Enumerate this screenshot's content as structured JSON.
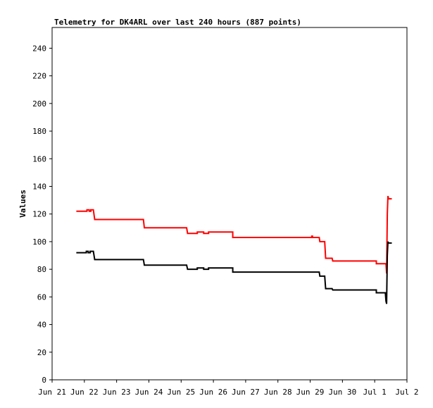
{
  "chart_data": {
    "type": "line",
    "title": "Telemetry for DK4ARL over last 240 hours (887 points)",
    "xlabel": "",
    "ylabel": "Values",
    "x_unit": "days",
    "xlim": [
      0,
      11
    ],
    "ylim": [
      0,
      255
    ],
    "x_ticks": [
      {
        "value": 0,
        "label": "Jun 21"
      },
      {
        "value": 1,
        "label": "Jun 22"
      },
      {
        "value": 2,
        "label": "Jun 23"
      },
      {
        "value": 3,
        "label": "Jun 24"
      },
      {
        "value": 4,
        "label": "Jun 25"
      },
      {
        "value": 5,
        "label": "Jun 26"
      },
      {
        "value": 6,
        "label": "Jun 27"
      },
      {
        "value": 7,
        "label": "Jun 28"
      },
      {
        "value": 8,
        "label": "Jun 29"
      },
      {
        "value": 9,
        "label": "Jun 30"
      },
      {
        "value": 10,
        "label": "Jul 1"
      },
      {
        "value": 11,
        "label": "Jul 2"
      }
    ],
    "y_ticks": [
      0,
      20,
      40,
      60,
      80,
      100,
      120,
      140,
      160,
      180,
      200,
      220,
      240
    ],
    "grid": false,
    "legend": "none",
    "series": [
      {
        "color": "#ff0000",
        "points": [
          [
            0.75,
            122
          ],
          [
            1.08,
            122
          ],
          [
            1.08,
            123
          ],
          [
            1.15,
            123
          ],
          [
            1.15,
            122
          ],
          [
            1.2,
            122
          ],
          [
            1.2,
            123
          ],
          [
            1.28,
            123
          ],
          [
            1.32,
            116
          ],
          [
            2.83,
            116
          ],
          [
            2.86,
            110
          ],
          [
            4.17,
            110
          ],
          [
            4.2,
            106
          ],
          [
            4.5,
            106
          ],
          [
            4.5,
            107
          ],
          [
            4.7,
            107
          ],
          [
            4.7,
            106
          ],
          [
            4.85,
            106
          ],
          [
            4.85,
            107
          ],
          [
            5.6,
            107
          ],
          [
            5.6,
            103
          ],
          [
            8.05,
            103
          ],
          [
            8.05,
            104
          ],
          [
            8.07,
            104
          ],
          [
            8.07,
            103
          ],
          [
            8.28,
            103
          ],
          [
            8.3,
            100
          ],
          [
            8.45,
            100
          ],
          [
            8.48,
            88
          ],
          [
            8.68,
            88
          ],
          [
            8.7,
            86
          ],
          [
            10.05,
            86
          ],
          [
            10.05,
            84
          ],
          [
            10.35,
            84
          ],
          [
            10.37,
            77
          ],
          [
            10.39,
            120
          ],
          [
            10.41,
            133
          ],
          [
            10.43,
            131
          ],
          [
            10.53,
            131
          ]
        ]
      },
      {
        "color": "#000000",
        "points": [
          [
            0.75,
            92
          ],
          [
            1.06,
            92
          ],
          [
            1.06,
            93
          ],
          [
            1.12,
            93
          ],
          [
            1.12,
            92
          ],
          [
            1.18,
            92
          ],
          [
            1.18,
            93
          ],
          [
            1.28,
            93
          ],
          [
            1.32,
            87
          ],
          [
            2.83,
            87
          ],
          [
            2.86,
            83
          ],
          [
            4.17,
            83
          ],
          [
            4.2,
            80
          ],
          [
            4.5,
            80
          ],
          [
            4.5,
            81
          ],
          [
            4.7,
            81
          ],
          [
            4.7,
            80
          ],
          [
            4.85,
            80
          ],
          [
            4.85,
            81
          ],
          [
            5.6,
            81
          ],
          [
            5.6,
            78
          ],
          [
            8.28,
            78
          ],
          [
            8.3,
            75
          ],
          [
            8.45,
            75
          ],
          [
            8.48,
            66
          ],
          [
            8.68,
            66
          ],
          [
            8.7,
            65
          ],
          [
            10.05,
            65
          ],
          [
            10.05,
            63
          ],
          [
            10.33,
            63
          ],
          [
            10.35,
            57
          ],
          [
            10.37,
            55
          ],
          [
            10.39,
            90
          ],
          [
            10.41,
            100
          ],
          [
            10.43,
            99
          ],
          [
            10.53,
            99
          ]
        ]
      }
    ]
  }
}
